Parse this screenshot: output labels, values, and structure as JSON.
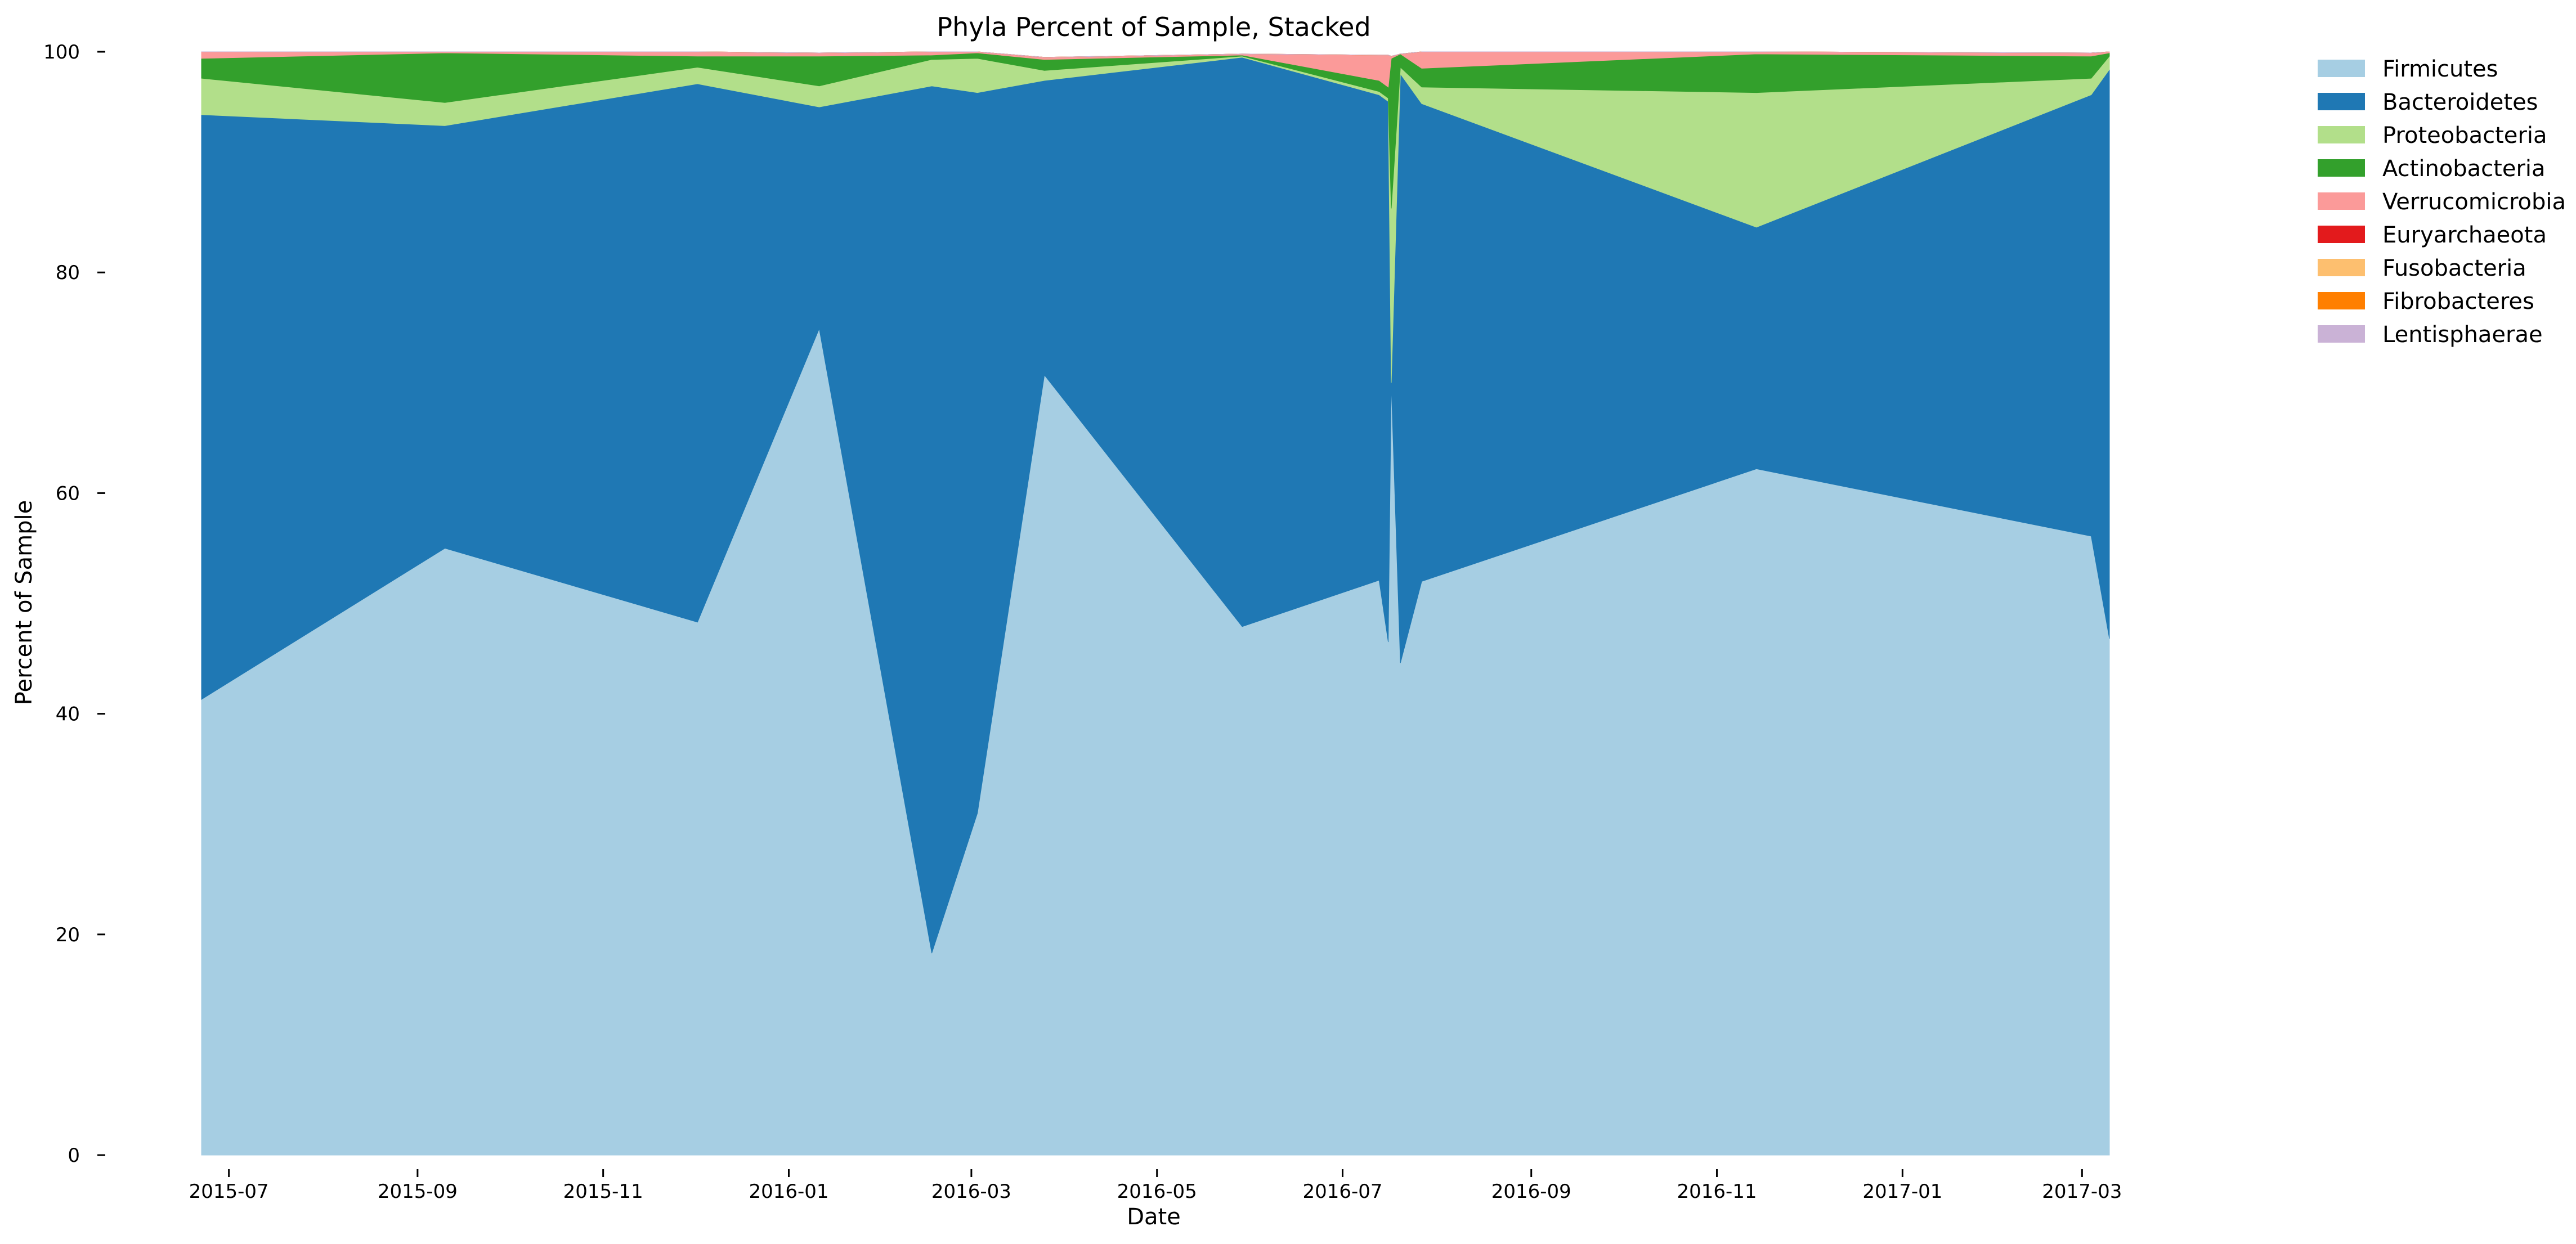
{
  "chart_data": {
    "type": "area",
    "stacked": true,
    "title": "Phyla Percent of Sample, Stacked",
    "xlabel": "Date",
    "ylabel": "Percent of Sample",
    "xlim": [
      "2015-06-22",
      "2017-03-10"
    ],
    "ylim": [
      0,
      100
    ],
    "x_ticks": [
      "2015-07",
      "2015-09",
      "2015-11",
      "2016-01",
      "2016-03",
      "2016-05",
      "2016-07",
      "2016-09",
      "2016-11",
      "2017-01",
      "2017-03"
    ],
    "y_ticks": [
      0,
      20,
      40,
      60,
      80,
      100
    ],
    "grid": false,
    "legend_position": "outside right, top",
    "x": [
      "2015-06-22",
      "2015-09-10",
      "2015-12-02",
      "2016-01-11",
      "2016-02-17",
      "2016-03-03",
      "2016-03-25",
      "2016-05-29",
      "2016-07-13",
      "2016-07-16",
      "2016-07-17",
      "2016-07-20",
      "2016-07-27",
      "2016-11-14",
      "2017-03-04",
      "2017-03-10"
    ],
    "series": [
      {
        "name": "Firmicutes",
        "color": "#a6cee3",
        "values": [
          41.3,
          55.0,
          48.3,
          74.9,
          18.3,
          31.0,
          70.7,
          47.9,
          52.1,
          46.5,
          70.0,
          44.6,
          52.0,
          62.2,
          56.1,
          46.8
        ]
      },
      {
        "name": "Bacteroidetes",
        "color": "#1f78b4",
        "values": [
          53.0,
          38.3,
          48.8,
          20.1,
          78.6,
          65.3,
          26.7,
          51.6,
          44.0,
          49.0,
          0.0,
          53.4,
          43.3,
          21.9,
          40.0,
          51.6
        ]
      },
      {
        "name": "Proteobacteria",
        "color": "#b2df8a",
        "values": [
          3.3,
          2.1,
          1.5,
          1.9,
          2.4,
          3.1,
          0.9,
          0.1,
          0.3,
          0.3,
          15.8,
          0.6,
          1.5,
          12.2,
          1.5,
          1.2
        ]
      },
      {
        "name": "Actinobacteria",
        "color": "#33a02c",
        "values": [
          1.8,
          4.5,
          1.0,
          2.7,
          0.4,
          0.5,
          1.0,
          0.1,
          1.0,
          1.0,
          13.6,
          1.2,
          1.7,
          3.5,
          2.0,
          0.3
        ]
      },
      {
        "name": "Verrucomicrobia",
        "color": "#fb9a99",
        "values": [
          0.6,
          0.1,
          0.4,
          0.3,
          0.3,
          0.1,
          0.2,
          0.1,
          2.3,
          2.9,
          0.2,
          0.0,
          1.5,
          0.2,
          0.3,
          0.1
        ]
      },
      {
        "name": "Euryarchaeota",
        "color": "#e31a1c",
        "values": [
          0,
          0,
          0,
          0,
          0,
          0,
          0,
          0,
          0,
          0,
          0,
          0,
          0,
          0,
          0,
          0
        ]
      },
      {
        "name": "Fusobacteria",
        "color": "#fdbf6f",
        "values": [
          0,
          0,
          0,
          0,
          0,
          0,
          0,
          0,
          0,
          0,
          0,
          0,
          0,
          0,
          0,
          0
        ]
      },
      {
        "name": "Fibrobacteres",
        "color": "#ff7f00",
        "values": [
          0,
          0,
          0,
          0,
          0,
          0,
          0,
          0,
          0,
          0,
          0,
          0,
          0,
          0,
          0,
          0
        ]
      },
      {
        "name": "Lentisphaerae",
        "color": "#cab2d6",
        "values": [
          0,
          0,
          0,
          0,
          0,
          0,
          0,
          0,
          0,
          0,
          0,
          0,
          0,
          0,
          0,
          0
        ]
      }
    ]
  }
}
